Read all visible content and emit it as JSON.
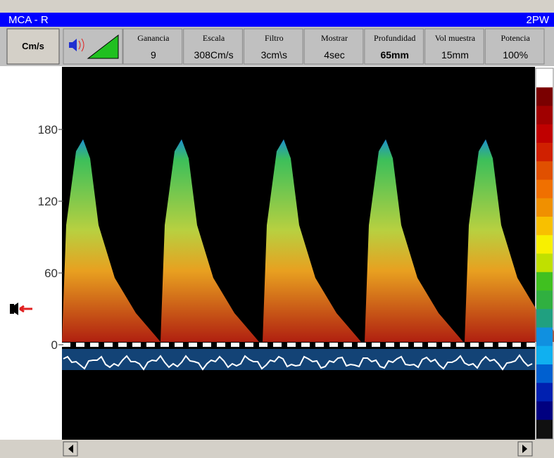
{
  "window": {
    "title": "MCA - R",
    "mode": "2PW"
  },
  "unit_button": "Cm/s",
  "header_cells": [
    {
      "label": "Ganancia",
      "value": "9"
    },
    {
      "label": "Escala",
      "value": "308Cm/s"
    },
    {
      "label": "Filtro",
      "value": "3cm\\s"
    },
    {
      "label": "Mostrar",
      "value": "4sec"
    },
    {
      "label": "Profundidad",
      "value": "65mm"
    },
    {
      "label": "Vol muestra",
      "value": "15mm"
    },
    {
      "label": "Potencia",
      "value": "100%"
    }
  ],
  "velocity_axis": {
    "ticks": [
      180,
      120,
      60,
      0
    ]
  }
}
